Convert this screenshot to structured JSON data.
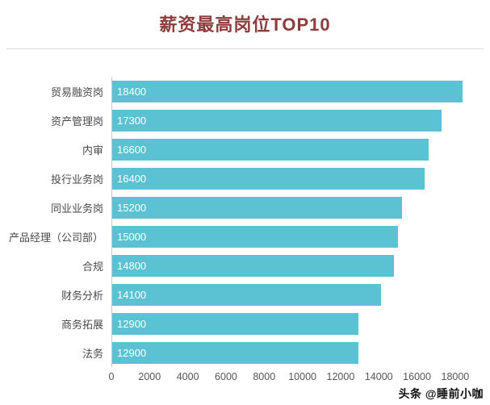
{
  "chart_data": {
    "type": "bar",
    "orientation": "horizontal",
    "title": "薪资最高岗位TOP10",
    "categories": [
      "贸易融资岗",
      "资产管理岗",
      "内审",
      "投行业务岗",
      "同业业务岗",
      "产品经理（公司部）",
      "合规",
      "财务分析",
      "商务拓展",
      "法务"
    ],
    "values": [
      18400,
      17300,
      16600,
      16400,
      15200,
      15000,
      14800,
      14100,
      12900,
      12900
    ],
    "xlabel": "",
    "ylabel": "",
    "xlim": [
      0,
      19400
    ],
    "xticks": [
      0,
      2000,
      4000,
      6000,
      8000,
      10000,
      12000,
      14000,
      16000,
      18000
    ],
    "grid": false,
    "legend": false,
    "value_labels": "inside-start-white"
  },
  "colors": {
    "bar": "#5bc2d4",
    "title": "#8d3c3c",
    "axis": "#c9c9c9",
    "tick_text": "#555555"
  },
  "watermark": {
    "prefix": "头条",
    "handle": "@睡前小咖"
  }
}
